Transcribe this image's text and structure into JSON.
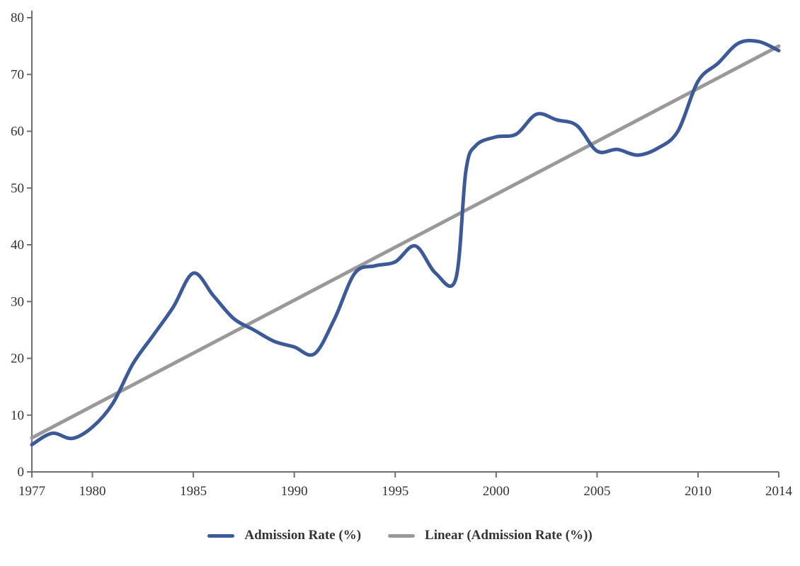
{
  "chart_data": {
    "type": "line",
    "title": "",
    "xlabel": "",
    "ylabel": "",
    "xlim": [
      1977,
      2014
    ],
    "ylim": [
      0,
      80
    ],
    "x_ticks": [
      "1977",
      "1980",
      "1985",
      "1990",
      "1995",
      "2000",
      "2005",
      "2010",
      "2014"
    ],
    "y_ticks": [
      "0",
      "10",
      "20",
      "30",
      "40",
      "50",
      "60",
      "70",
      "80"
    ],
    "grid": false,
    "legend_position": "bottom",
    "series": [
      {
        "name": "Admission Rate (%)",
        "color": "#3d5a98",
        "x": [
          1977,
          1978,
          1979,
          1980,
          1981,
          1982,
          1983,
          1984,
          1985,
          1986,
          1987,
          1988,
          1989,
          1990,
          1991,
          1992,
          1993,
          1994,
          1995,
          1996,
          1997,
          1998,
          1998.5,
          1999,
          2000,
          2001,
          2002,
          2003,
          2004,
          2005,
          2006,
          2007,
          2008,
          2009,
          2010,
          2011,
          2012,
          2013,
          2014
        ],
        "y": [
          4.8,
          6.8,
          5.9,
          7.9,
          12.0,
          19.0,
          24.0,
          29.0,
          35.0,
          31.0,
          27.0,
          25.0,
          23.0,
          22.0,
          20.8,
          27.0,
          35.0,
          36.3,
          37.0,
          39.8,
          35.0,
          34.0,
          53.0,
          57.5,
          59.0,
          59.5,
          63.0,
          62.0,
          61.0,
          56.5,
          56.8,
          55.8,
          57.0,
          60.0,
          68.8,
          72.0,
          75.5,
          75.8,
          74.2
        ]
      },
      {
        "name": "Linear (Admission Rate (%))",
        "color": "#999999",
        "x": [
          1977,
          2014
        ],
        "y": [
          6.0,
          75.0
        ]
      }
    ]
  }
}
